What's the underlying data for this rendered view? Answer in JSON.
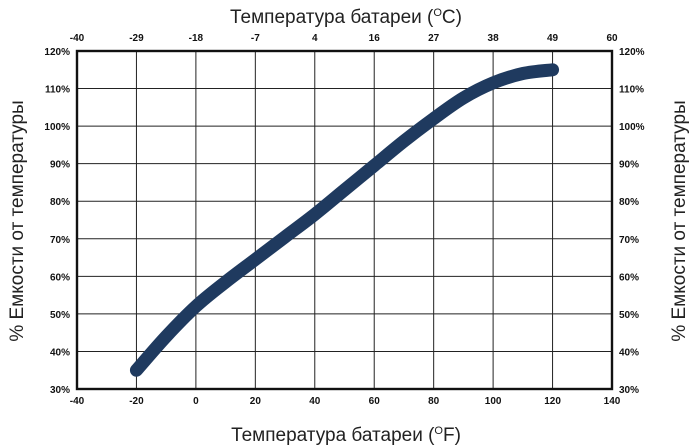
{
  "chart_data": {
    "type": "line",
    "title": "",
    "xlabel": "Температура батареи (",
    "xlabel_unit": "F)",
    "x2label": "Температура батареи (",
    "x2label_unit": "C)",
    "degree_mark": "O",
    "ylabel": "% Емкости от температуры",
    "y2label": "% Емкости от температуры",
    "xlim": [
      -40,
      140
    ],
    "ylim": [
      30,
      120
    ],
    "grid": true,
    "x_ticks": [
      "-40",
      "-20",
      "0",
      "20",
      "40",
      "60",
      "80",
      "100",
      "120",
      "140"
    ],
    "x2_ticks": [
      "-40",
      "-29",
      "-18",
      "-7",
      "4",
      "16",
      "27",
      "38",
      "49",
      "60"
    ],
    "y_ticks": [
      "30%",
      "40%",
      "50%",
      "60%",
      "70%",
      "80%",
      "90%",
      "100%",
      "110%",
      "120%"
    ],
    "y2_ticks": [
      "30%",
      "40%",
      "50%",
      "60%",
      "70%",
      "80%",
      "90%",
      "100%",
      "110%",
      "120%"
    ],
    "series": [
      {
        "color": "#1f3a5f",
        "x": [
          -20,
          -10,
          0,
          10,
          20,
          30,
          40,
          50,
          60,
          70,
          80,
          90,
          100,
          110,
          120
        ],
        "y": [
          35,
          44,
          52,
          58.5,
          64.5,
          70.5,
          76.5,
          83,
          89.5,
          96,
          102,
          107.5,
          111.5,
          114,
          115
        ]
      }
    ]
  }
}
